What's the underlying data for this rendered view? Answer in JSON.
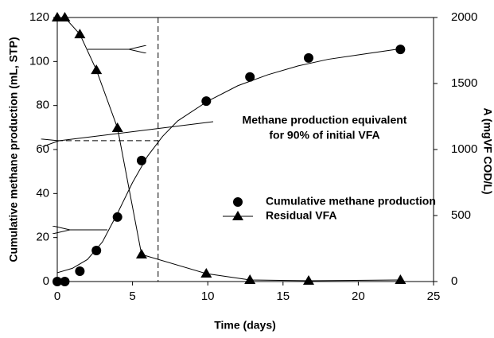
{
  "chart_data": {
    "type": "scatter",
    "xlabel": "Time (days)",
    "ylabel": "Cumulative methane production (mL, STP)",
    "y2label": "A (mgVF COD/L)",
    "xlim": [
      0,
      25
    ],
    "xticks": [
      0,
      5,
      10,
      15,
      20,
      25
    ],
    "ylim": [
      0,
      120
    ],
    "yticks": [
      0,
      20,
      40,
      60,
      80,
      100,
      120
    ],
    "y2lim": [
      0,
      2000
    ],
    "y2ticks": [
      0,
      500,
      1000,
      1500,
      2000
    ],
    "series": [
      {
        "name": "Cumulative methane production",
        "color": "#000000",
        "marker": "circle",
        "x": [
          0,
          0.5,
          1.5,
          2.6,
          4.0,
          5.6,
          9.9,
          12.8,
          16.7,
          22.8
        ],
        "values": [
          0,
          0,
          4.7,
          14.1,
          29.3,
          55,
          82,
          93,
          101.6,
          105.5
        ]
      },
      {
        "name": "Residual VFA",
        "color": "#000000",
        "marker": "triangle",
        "axis": "y2",
        "x": [
          0,
          0.5,
          1.5,
          2.6,
          4.0,
          5.6,
          9.9,
          12.8,
          16.7,
          22.8
        ],
        "values": [
          2000,
          2000,
          1873,
          1602,
          1163,
          205,
          60,
          12,
          6,
          12
        ]
      }
    ],
    "fit_curve": {
      "x": [
        0,
        1,
        2,
        3,
        4,
        5,
        6,
        7,
        8,
        10,
        12,
        14,
        16,
        18,
        20,
        22.5
      ],
      "values": [
        4,
        6,
        10,
        18,
        31,
        45,
        57,
        66,
        73,
        82,
        89,
        94,
        98,
        101,
        103,
        105.5
      ]
    },
    "reference": {
      "x": 6.7,
      "y": 64
    },
    "annotations": [
      "Methane production equivalent",
      "for 90% of initial VFA"
    ]
  }
}
